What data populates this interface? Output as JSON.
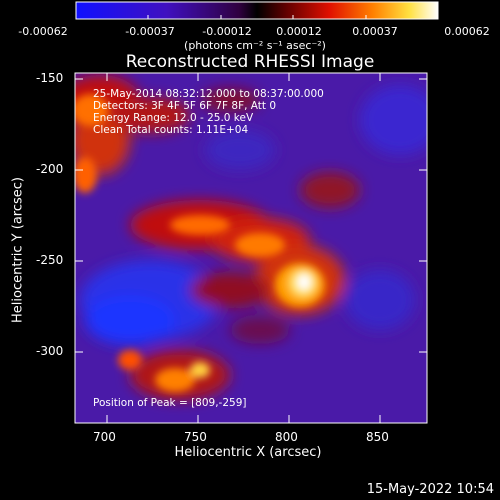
{
  "colorbar": {
    "tick_labels": [
      "-0.00062",
      "-0.00037",
      "-0.00012",
      "0.00012",
      "0.00037",
      "0.00062"
    ],
    "units": "(photons cm⁻² s⁻¹ asec⁻²)"
  },
  "plot": {
    "title": "Reconstructed RHESSI Image",
    "xlabel": "Heliocentric X (arcsec)",
    "ylabel": "Heliocentric Y (arcsec)",
    "x_ticks": [
      "700",
      "750",
      "800",
      "850"
    ],
    "y_ticks": [
      "-150",
      "-200",
      "-250",
      "-300"
    ],
    "annotations": [
      "25-May-2014 08:32:12.000 to 08:37:00.000",
      "Detectors: 3F 4F 5F 6F 7F 8F, Att 0",
      "Energy Range: 12.0 - 25.0 keV",
      "Clean     Total counts: 1.11E+04"
    ],
    "peak_text": "Position of Peak = [809,-259]"
  },
  "footer": {
    "date": "15-May-2022 10:54"
  }
}
